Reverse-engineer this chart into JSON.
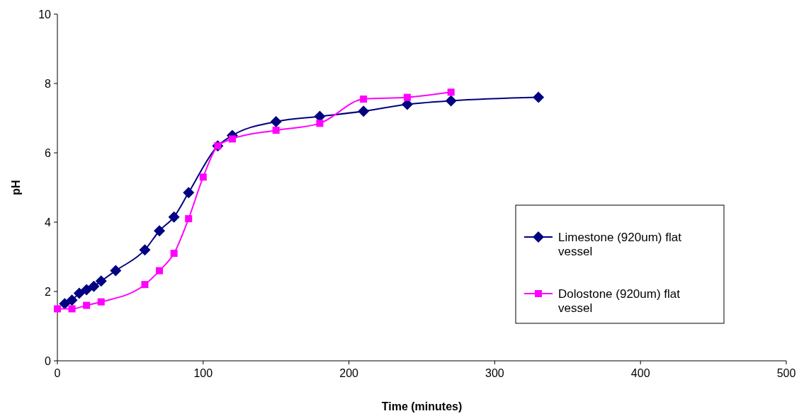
{
  "chart_data": {
    "type": "line",
    "xlabel": "Time (minutes)",
    "ylabel": "pH",
    "xlim": [
      0,
      500
    ],
    "xticks": [
      0,
      100,
      200,
      300,
      400,
      500
    ],
    "ylim": [
      0,
      10
    ],
    "yticks": [
      0,
      2,
      4,
      6,
      8,
      10
    ],
    "grid": false,
    "legend": "right",
    "line_style": "solid",
    "series": [
      {
        "name": "Limestone (920um) flat vessel",
        "color": "#000080",
        "marker": "diamond",
        "x": [
          5,
          10,
          15,
          20,
          25,
          30,
          40,
          60,
          70,
          80,
          90,
          110,
          120,
          150,
          180,
          210,
          240,
          270,
          330
        ],
        "values": [
          1.65,
          1.75,
          1.95,
          2.05,
          2.15,
          2.3,
          2.6,
          3.2,
          3.75,
          4.15,
          4.85,
          6.2,
          6.5,
          6.9,
          7.05,
          7.2,
          7.4,
          7.5,
          7.6
        ]
      },
      {
        "name": "Dolostone (920um) flat vessel",
        "color": "#ff00ff",
        "marker": "square",
        "x": [
          0,
          10,
          20,
          30,
          60,
          70,
          80,
          90,
          100,
          110,
          120,
          150,
          180,
          210,
          240,
          270
        ],
        "values": [
          1.5,
          1.5,
          1.6,
          1.7,
          2.2,
          2.6,
          3.1,
          4.1,
          5.3,
          6.2,
          6.4,
          6.65,
          6.85,
          7.55,
          7.6,
          7.75
        ]
      }
    ]
  }
}
